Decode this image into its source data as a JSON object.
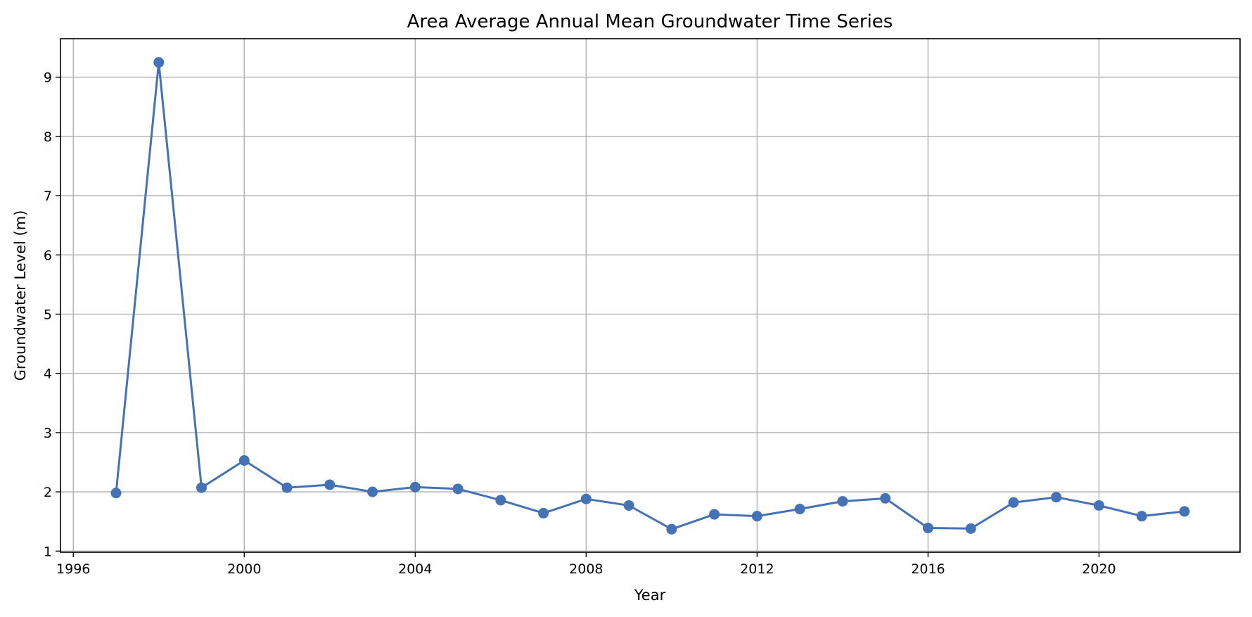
{
  "chart_data": {
    "type": "line",
    "title": "Area Average Annual Mean Groundwater Time Series",
    "xlabel": "Year",
    "ylabel": "Groundwater Level (m)",
    "xlim": [
      1995.7,
      2023.3
    ],
    "ylim": [
      0.98,
      9.65
    ],
    "x_ticks": [
      1996,
      2000,
      2004,
      2008,
      2012,
      2016,
      2020
    ],
    "y_ticks": [
      1,
      2,
      3,
      4,
      5,
      6,
      7,
      8,
      9
    ],
    "grid": true,
    "series": [
      {
        "color": "#4472b4",
        "marker": "circle",
        "x": [
          1997,
          1998,
          1999,
          2000,
          2001,
          2002,
          2003,
          2004,
          2005,
          2006,
          2007,
          2008,
          2009,
          2010,
          2011,
          2012,
          2013,
          2014,
          2015,
          2016,
          2017,
          2018,
          2019,
          2020,
          2021,
          2022
        ],
        "values": [
          1.98,
          9.25,
          2.07,
          2.53,
          2.07,
          2.12,
          2.0,
          2.08,
          2.05,
          1.86,
          1.64,
          1.88,
          1.77,
          1.37,
          1.62,
          1.59,
          1.71,
          1.84,
          1.89,
          1.39,
          1.38,
          1.82,
          1.91,
          1.77,
          1.59,
          1.67
        ]
      }
    ]
  }
}
